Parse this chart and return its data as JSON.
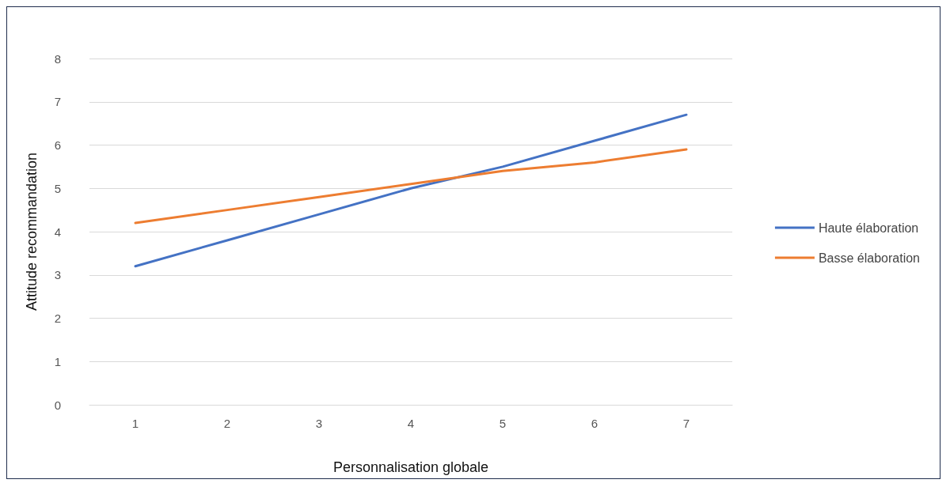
{
  "chart_data": {
    "type": "line",
    "xlabel": "Personnalisation globale",
    "ylabel": "Attitude recommandation",
    "categories": [
      "1",
      "2",
      "3",
      "4",
      "5",
      "6",
      "7"
    ],
    "series": [
      {
        "name": "Haute élaboration",
        "color": "#4472c4",
        "values": [
          3.2,
          3.8,
          4.4,
          5.0,
          5.5,
          6.1,
          6.7
        ]
      },
      {
        "name": "Basse élaboration",
        "color": "#ed7d31",
        "values": [
          4.2,
          4.5,
          4.8,
          5.1,
          5.4,
          5.6,
          5.9
        ]
      }
    ],
    "ylim": [
      0,
      8
    ],
    "yticks": [
      0,
      1,
      2,
      3,
      4,
      5,
      6,
      7,
      8
    ],
    "grid": "y",
    "legend": "right",
    "marker": "none",
    "line_style": "solid"
  }
}
